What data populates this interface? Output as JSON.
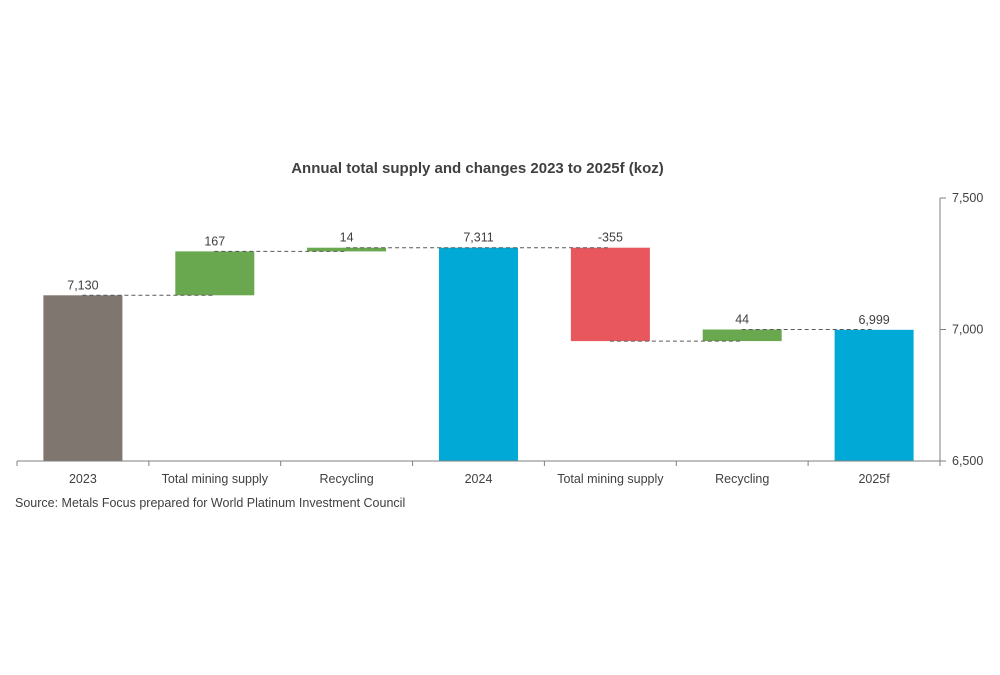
{
  "chart_data": {
    "type": "bar",
    "subtype": "waterfall",
    "title": "Annual total supply and changes 2023 to 2025f (koz)",
    "categories": [
      "2023",
      "Total mining supply",
      "Recycling",
      "2024",
      "Total mining supply",
      "Recycling",
      "2025f"
    ],
    "kinds": [
      "total",
      "change",
      "change",
      "total",
      "change",
      "change",
      "total"
    ],
    "values": [
      7130,
      167,
      14,
      7311,
      -355,
      44,
      6999
    ],
    "data_labels": [
      "7,130",
      "167",
      "14",
      "7,311",
      "-355",
      "44",
      "6,999"
    ],
    "ylim": [
      6500,
      7500
    ],
    "yticks": [
      6500,
      7000,
      7500
    ],
    "ytick_labels": [
      "6,500",
      "7,000",
      "7,500"
    ],
    "y_axis_position": "right",
    "grid": false,
    "colors": {
      "total_2023": "#7f766f",
      "total": "#00a9d6",
      "increase": "#6aa84f",
      "decrease": "#e8575d",
      "connector": "#595959",
      "axis": "#7f7f7f"
    }
  },
  "source": "Source: Metals Focus prepared for World Platinum Investment Council"
}
